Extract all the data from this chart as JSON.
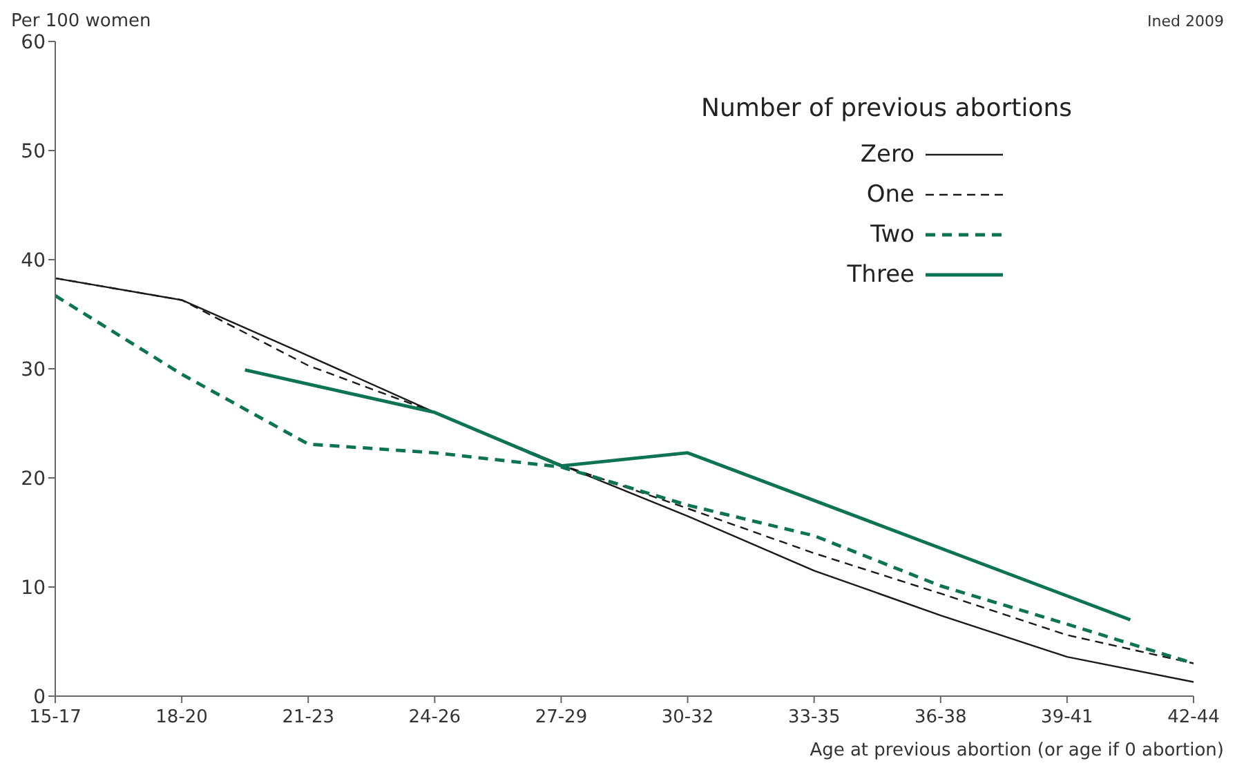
{
  "chart_data": {
    "type": "line",
    "ylabel": "Per 100 women",
    "xlabel": "Age at previous abortion (or age if 0 abortion)",
    "legend_title": "Number of previous abortions",
    "annotations": [
      "Ined 2009"
    ],
    "categories": [
      "15-17",
      null,
      "18-20",
      null,
      "21-23",
      null,
      "24-26",
      null,
      "27-29",
      null,
      "30-32",
      null,
      "33-35",
      null,
      "36-38",
      null,
      "39-41",
      null,
      "42-44"
    ],
    "ylim": [
      0,
      60
    ],
    "yticks": [
      0,
      10,
      20,
      30,
      40,
      50,
      60
    ],
    "grid": false,
    "legend": "top right",
    "marker": "none",
    "series": [
      {
        "name": "Zero",
        "color": "#1a1a1a",
        "line_style": "solid",
        "values": [
          38.3,
          null,
          36.3,
          null,
          31.2,
          null,
          26,
          null,
          21.2,
          null,
          16.5,
          null,
          11.5,
          null,
          7.4,
          null,
          3.6,
          null,
          1.3
        ]
      },
      {
        "name": "One",
        "color": "#1a1a1a",
        "line_style": "dashed",
        "values": [
          38.3,
          null,
          36.3,
          null,
          30.3,
          null,
          26,
          null,
          21.2,
          null,
          17.2,
          null,
          13.1,
          null,
          9.4,
          null,
          5.6,
          null,
          3.0
        ]
      },
      {
        "name": "Two",
        "color": "#0d7355",
        "line_style": "dashed",
        "values": [
          36.7,
          null,
          29.5,
          null,
          23.1,
          null,
          22.3,
          null,
          21.0,
          null,
          17.5,
          null,
          14.7,
          null,
          10.1,
          null,
          6.6,
          null,
          3.0
        ]
      },
      {
        "name": "Three",
        "color": "#0d7355",
        "line_style": "solid",
        "values": [
          null,
          null,
          null,
          29.9,
          null,
          null,
          26,
          null,
          21.1,
          null,
          22.3,
          null,
          null,
          null,
          null,
          null,
          null,
          7.0,
          null
        ]
      }
    ]
  }
}
